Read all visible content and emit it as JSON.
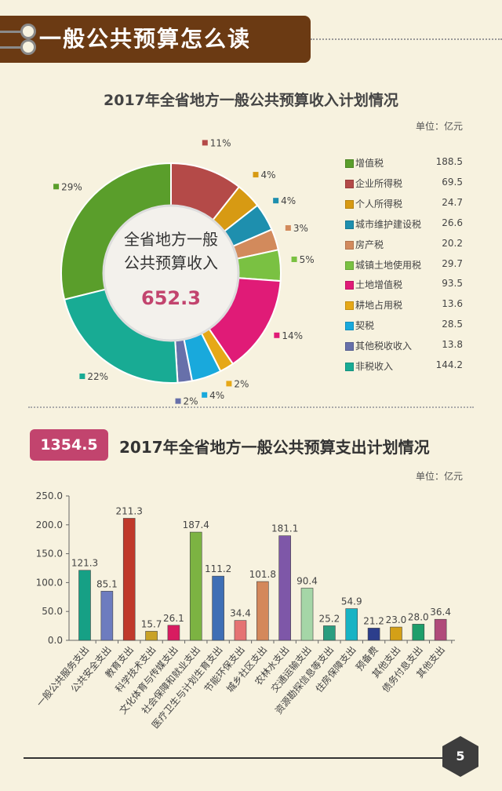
{
  "header": {
    "title": "一般公共预算怎么读"
  },
  "income": {
    "title": "2017年全省地方一般公共预算收入计划情况",
    "unit": "单位：亿元",
    "center_line1": "全省地方一般",
    "center_line2": "公共预算收入",
    "total": "652.3"
  },
  "expense": {
    "badge": "1354.5",
    "title": "2017年全省地方一般公共预算支出计划情况",
    "unit": "单位：亿元"
  },
  "page_number": "5",
  "chart_data": [
    {
      "type": "pie",
      "categories": [
        "增值税",
        "企业所得税",
        "个人所得税",
        "城市维护建设税",
        "房产税",
        "城镇土地使用税",
        "土地增值税",
        "耕地占用税",
        "契税",
        "其他税收收入",
        "非税收入"
      ],
      "values": [
        188.5,
        69.5,
        24.7,
        26.6,
        20.2,
        29.7,
        93.5,
        13.6,
        28.5,
        13.8,
        144.2
      ],
      "percent_labels": [
        "29%",
        "11%",
        "4%",
        "4%",
        "3%",
        "5%",
        "14%",
        "2%",
        "4%",
        "2%",
        "22%"
      ],
      "colors": [
        "#5a9e2b",
        "#b44a48",
        "#d79a13",
        "#1e8fae",
        "#d28a5c",
        "#7ac142",
        "#e01b77",
        "#e6a817",
        "#19a9dc",
        "#6770aa",
        "#18ab94"
      ],
      "legend": "right"
    },
    {
      "type": "bar",
      "categories": [
        "一般公共服务支出",
        "公共安全支出",
        "教育支出",
        "科学技术支出",
        "文化体育与传媒支出",
        "社会保障和就业支出",
        "医疗卫生与计划生育支出",
        "节能环保支出",
        "城乡社区支出",
        "农林水支出",
        "交通运输支出",
        "资源勘探信息等支出",
        "住房保障支出",
        "预备费",
        "其他支出",
        "债务付息支出",
        "其他支出"
      ],
      "values": [
        121.3,
        85.1,
        211.3,
        15.7,
        26.1,
        187.4,
        111.2,
        34.4,
        101.8,
        181.1,
        90.4,
        25.2,
        54.9,
        21.2,
        23.0,
        28.0,
        36.4
      ],
      "value_labels": [
        "121.3",
        "85.1",
        "211.3",
        "15.7",
        "26.1",
        "187.4",
        "111.2",
        "34.4",
        "101.8",
        "181.1",
        "90.4",
        "25.2",
        "54.9",
        "21.2",
        "23.0",
        "28.0",
        "36.4"
      ],
      "colors": [
        "#16a085",
        "#6d7cbf",
        "#c0392b",
        "#c9a227",
        "#d81b60",
        "#7cb342",
        "#3f6fb5",
        "#e57373",
        "#d4885b",
        "#7e57a8",
        "#a5d6a7",
        "#2a9d7f",
        "#17b3c4",
        "#2c3e8c",
        "#d4a017",
        "#1e9e6a",
        "#b04a7a"
      ],
      "yticks": [
        "0.0",
        "50.0",
        "100.0",
        "150.0",
        "200.0",
        "250.0"
      ],
      "ylim": [
        0,
        250
      ],
      "grid": false
    }
  ]
}
